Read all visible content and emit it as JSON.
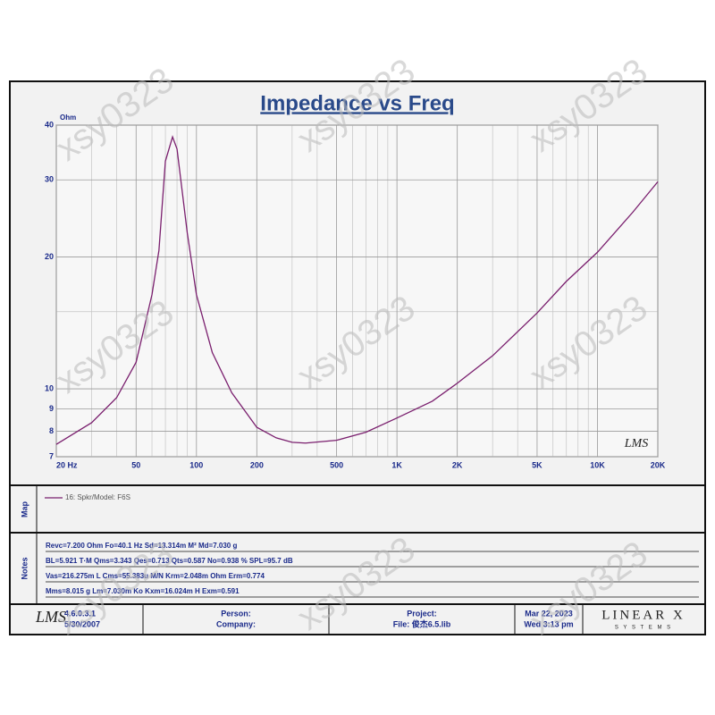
{
  "chart_data": {
    "type": "line",
    "title": "Impedance vs Freq",
    "ylabel": "Ohm",
    "xscale": "log",
    "yscale": "log",
    "grid": true,
    "x": [
      20,
      30,
      40,
      50,
      60,
      65,
      70,
      76,
      80,
      90,
      100,
      120,
      150,
      200,
      250,
      300,
      350,
      500,
      700,
      1000,
      1500,
      2000,
      3000,
      5000,
      7000,
      10000,
      15000,
      20000
    ],
    "series": [
      {
        "name": "16: Spkr/Model: F6S",
        "color": "#7a1f6e",
        "values": [
          7.47,
          8.37,
          9.55,
          11.5,
          16.4,
          20.7,
          33.1,
          37.6,
          35.3,
          22.7,
          16.4,
          12.1,
          9.8,
          8.17,
          7.73,
          7.55,
          7.52,
          7.63,
          7.96,
          8.58,
          9.37,
          10.3,
          11.9,
          14.9,
          17.6,
          20.5,
          25.3,
          29.7
        ]
      }
    ],
    "xlim": [
      20,
      20000
    ],
    "ylim": [
      7,
      40
    ],
    "xticks": [
      {
        "value": 20,
        "label": "20 Hz"
      },
      50,
      100,
      200,
      500,
      {
        "value": 1000,
        "label": "1K"
      },
      {
        "value": 2000,
        "label": "2K"
      },
      {
        "value": 5000,
        "label": "5K"
      },
      {
        "value": 10000,
        "label": "10K"
      },
      {
        "value": 20000,
        "label": "20K"
      }
    ],
    "xminor": [
      30,
      40,
      60,
      70,
      80,
      90,
      300,
      400,
      600,
      700,
      800,
      900,
      3000,
      4000,
      6000,
      7000,
      8000,
      9000
    ],
    "yticks": [
      7,
      8,
      9,
      10,
      20,
      30,
      40
    ],
    "yminor": [
      15
    ]
  },
  "plot_logo": "LMS",
  "map_label": "Map",
  "notes_label": "Notes",
  "notes": [
    "Revc=7.200 Ohm  Fo=40.1 Hz  Sd=13.314m M²  Md=7.030 g",
    "BL=5.921 T·M  Qms=3.343  Qes=0.713  Qts=0.587  No=0.938 %  SPL=95.7 dB",
    "Vas=216.275m L  Cms=55.383u M/N  Krm=2.048m Ohm  Erm=0.774",
    "Mms=8.015 g  Lm=7.030m Ko  Kxm=16.024m H  Exm=0.591"
  ],
  "footer": {
    "logo": "LMS",
    "version": "4.6.0.3.1",
    "date": "5/30/2007",
    "person": "Person:",
    "company": "Company:",
    "project": "Project:",
    "file": "File: 俊杰6.5.lib",
    "print_date": "Mar 22, 2023",
    "print_time": "Wed 3:13 pm",
    "brand": "LINEAR X",
    "brand_sub": "S Y S T E M S"
  },
  "watermark": "xsy0323"
}
